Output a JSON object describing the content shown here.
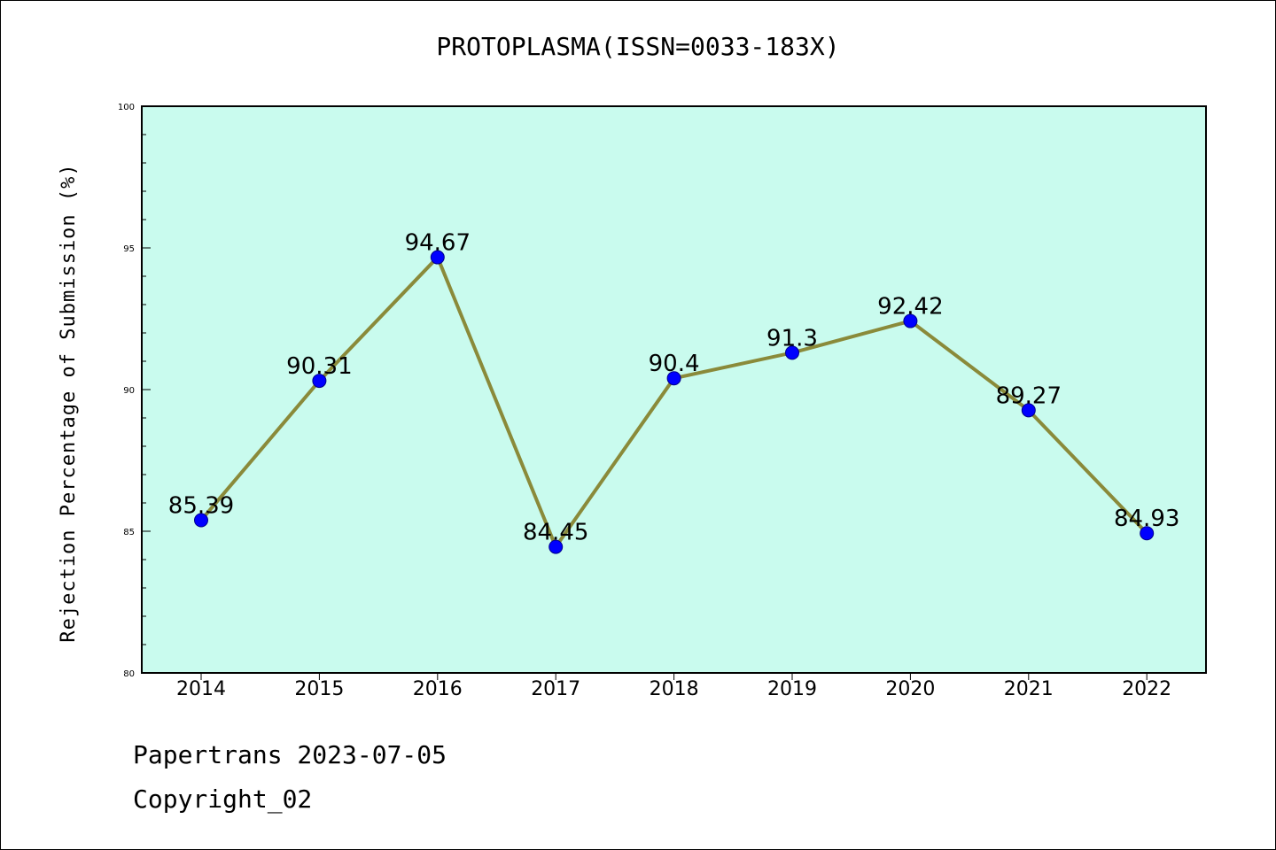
{
  "title": "PROTOPLASMA(ISSN=0033-183X)",
  "footer": {
    "line1": "Papertrans 2023-07-05",
    "line2": "Copyright_02"
  },
  "colors": {
    "plot_background": "#c9fbee",
    "line": "#8a8a3a",
    "marker": "#0000ff"
  },
  "chart_data": {
    "type": "line",
    "title": "PROTOPLASMA(ISSN=0033-183X)",
    "xlabel": "",
    "ylabel": "Rejection Percentage of Submission (%)",
    "categories": [
      "2014",
      "2015",
      "2016",
      "2017",
      "2018",
      "2019",
      "2020",
      "2021",
      "2022"
    ],
    "values": [
      85.39,
      90.31,
      94.67,
      84.45,
      90.4,
      91.3,
      92.42,
      89.27,
      84.93
    ],
    "data_labels": [
      "85.39",
      "90.31",
      "94.67",
      "84.45",
      "90.4",
      "91.3",
      "92.42",
      "89.27",
      "84.93"
    ],
    "ylim": [
      80,
      100
    ],
    "yticks": [
      "80",
      "85",
      "90",
      "95",
      "100"
    ],
    "grid": false
  }
}
